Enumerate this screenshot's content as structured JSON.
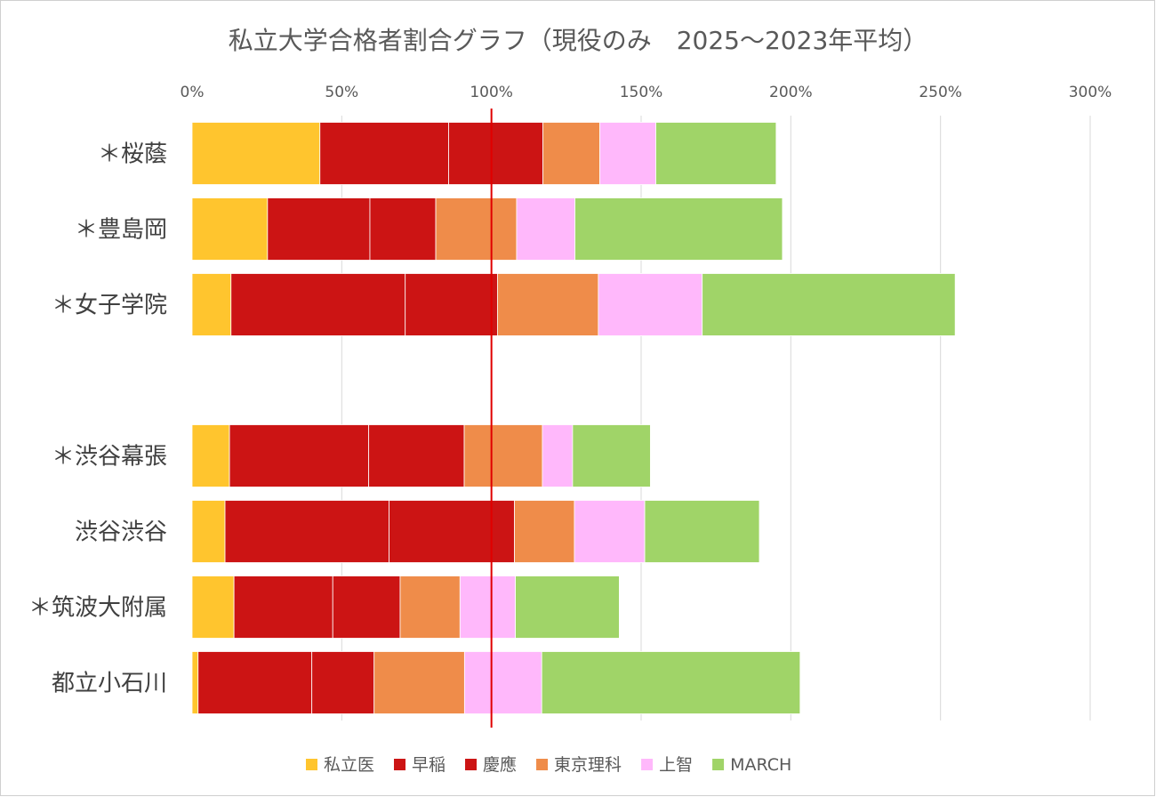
{
  "chart_data": {
    "type": "bar",
    "orientation": "horizontal",
    "stacked": true,
    "title": "私立大学合格者割合グラフ（現役のみ　2025〜2023年平均）",
    "xlabel": "",
    "ylabel": "",
    "xlim": [
      0,
      300
    ],
    "x_ticks": [
      0,
      50,
      100,
      150,
      200,
      250,
      300
    ],
    "x_tick_labels": [
      "0%",
      "50%",
      "100%",
      "150%",
      "200%",
      "250%",
      "300%"
    ],
    "x_axis_position": "top",
    "grid": "vertical",
    "legend": "bottom",
    "reference_line": {
      "x": 100,
      "color": "#e00000"
    },
    "categories": [
      "＊桜蔭",
      "＊豊島岡",
      "＊女子学院",
      "",
      "＊渋谷幕張",
      "渋谷渋谷",
      "＊筑波大附属",
      "都立小石川"
    ],
    "series": [
      {
        "name": "私立医",
        "color": "#ffc52e",
        "values": [
          42.7,
          25.2,
          13.0,
          0,
          12.5,
          11.0,
          14.0,
          2.0
        ]
      },
      {
        "name": "早稲",
        "color": "#cc1414",
        "values": [
          43.0,
          34.2,
          58.2,
          0,
          46.5,
          54.8,
          33.0,
          38.0
        ]
      },
      {
        "name": "慶應",
        "color": "#cc1414",
        "values": [
          31.5,
          22.0,
          30.8,
          0,
          31.9,
          41.9,
          22.5,
          20.8
        ]
      },
      {
        "name": "東京理科",
        "color": "#ef8c4a",
        "values": [
          19.0,
          27.0,
          33.7,
          0,
          26.1,
          20.0,
          20.0,
          30.2
        ]
      },
      {
        "name": "上智",
        "color": "#ffb8fb",
        "values": [
          18.7,
          19.5,
          34.7,
          0,
          10.1,
          23.5,
          18.5,
          25.8
        ]
      },
      {
        "name": "MARCH",
        "color": "#a0d468",
        "values": [
          40.2,
          69.3,
          84.5,
          0,
          26.0,
          38.3,
          34.7,
          86.3
        ]
      }
    ]
  }
}
